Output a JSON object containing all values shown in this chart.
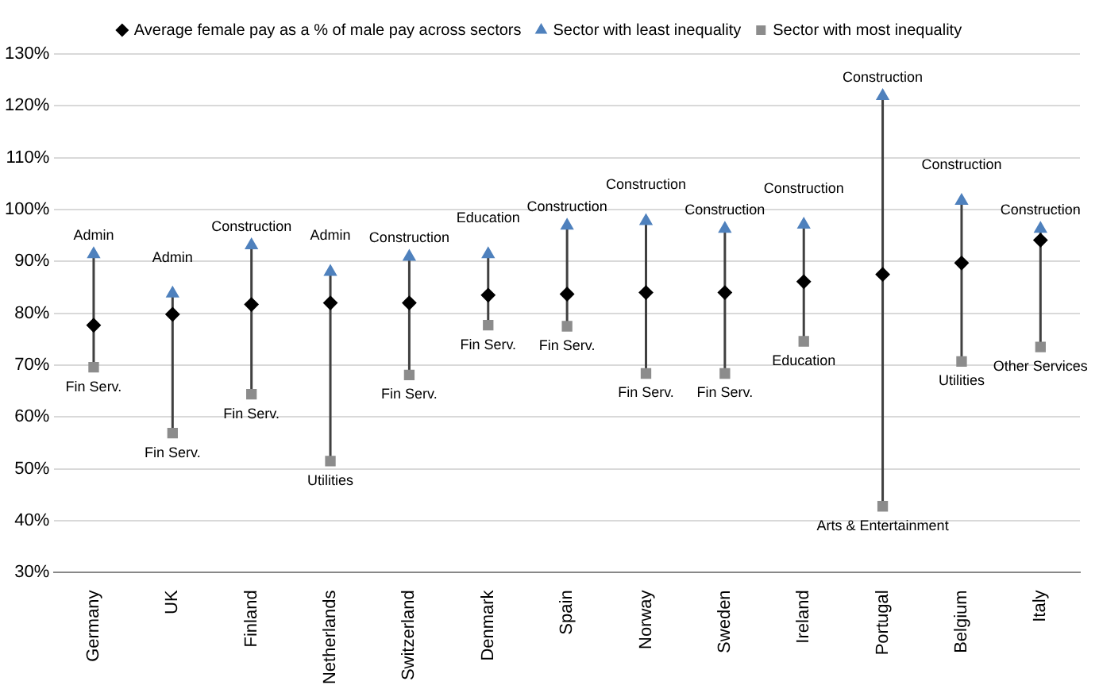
{
  "chart_data": {
    "type": "scatter",
    "categories": [
      "Germany",
      "UK",
      "Finland",
      "Netherlands",
      "Switzerland",
      "Denmark",
      "Spain",
      "Norway",
      "Sweden",
      "Ireland",
      "Portugal",
      "Belgium",
      "Italy"
    ],
    "series": [
      {
        "name": "Average female pay as a % of male pay across sectors",
        "color": "#000000",
        "marker": "diamond",
        "values": [
          77.7,
          79.8,
          81.7,
          82,
          82,
          83.5,
          83.7,
          84,
          84,
          86.1,
          87.5,
          89.7,
          94.1
        ]
      },
      {
        "name": "Sector with least inequality",
        "color": "#4f81bd",
        "marker": "triangle",
        "values": [
          91.4,
          83.8,
          93.1,
          88,
          90.9,
          91.4,
          96.9,
          97.8,
          96.3,
          97.1,
          121.9,
          101.7,
          96.3
        ]
      },
      {
        "name": "Sector with most inequality",
        "color": "#8c8c8c",
        "marker": "square",
        "values": [
          69.6,
          56.9,
          64.4,
          51.5,
          68.1,
          77.7,
          77.5,
          68.4,
          68.4,
          74.6,
          42.8,
          70.7,
          73.5
        ]
      }
    ],
    "ylim": [
      30,
      130
    ],
    "yticks": [
      {
        "value": 30,
        "label": "30%"
      },
      {
        "value": 40,
        "label": "40%"
      },
      {
        "value": 50,
        "label": "50%"
      },
      {
        "value": 60,
        "label": "60%"
      },
      {
        "value": 70,
        "label": "70%"
      },
      {
        "value": 80,
        "label": "80%"
      },
      {
        "value": 90,
        "label": "90%"
      },
      {
        "value": 100,
        "label": "100%"
      },
      {
        "value": 110,
        "label": "110%"
      },
      {
        "value": 120,
        "label": "120%"
      },
      {
        "value": 130,
        "label": "130%"
      }
    ],
    "grid": "y",
    "legend": "top",
    "annotations": [
      {
        "text": "Admin",
        "x": "Germany",
        "y": 91.4
      },
      {
        "text": "Fin Serv.",
        "x": "Germany",
        "y": 69.6
      },
      {
        "text": "Admin",
        "x": "UK",
        "y": 83.8
      },
      {
        "text": "Fin Serv.",
        "x": "UK",
        "y": 56.9
      },
      {
        "text": "Construction",
        "x": "Finland",
        "y": 93.1
      },
      {
        "text": "Fin Serv.",
        "x": "Finland",
        "y": 64.4
      },
      {
        "text": "Admin",
        "x": "Netherlands",
        "y": 88
      },
      {
        "text": "Utilities",
        "x": "Netherlands",
        "y": 51.5
      },
      {
        "text": "Construction",
        "x": "Switzerland",
        "y": 90.9
      },
      {
        "text": "Fin Serv.",
        "x": "Switzerland",
        "y": 68.1
      },
      {
        "text": "Education",
        "x": "Denmark",
        "y": 91.4
      },
      {
        "text": "Fin Serv.",
        "x": "Denmark",
        "y": 77.7
      },
      {
        "text": "Construction",
        "x": "Spain",
        "y": 96.9
      },
      {
        "text": "Fin Serv.",
        "x": "Spain",
        "y": 77.5
      },
      {
        "text": "Construction",
        "x": "Norway",
        "y": 97.8
      },
      {
        "text": "Fin Serv.",
        "x": "Norway",
        "y": 68.4
      },
      {
        "text": "Construction",
        "x": "Sweden",
        "y": 96.3
      },
      {
        "text": "Fin Serv.",
        "x": "Sweden",
        "y": 68.4
      },
      {
        "text": "Construction",
        "x": "Ireland",
        "y": 97.1
      },
      {
        "text": "Education",
        "x": "Ireland",
        "y": 74.6
      },
      {
        "text": "Construction",
        "x": "Portugal",
        "y": 121.9
      },
      {
        "text": "Arts & Entertainment",
        "x": "Portugal",
        "y": 42.8
      },
      {
        "text": "Construction",
        "x": "Belgium",
        "y": 101.7
      },
      {
        "text": "Utilities",
        "x": "Belgium",
        "y": 70.7
      },
      {
        "text": "Construction",
        "x": "Italy",
        "y": 96.3
      },
      {
        "text": "Other Services",
        "x": "Italy",
        "y": 73.5
      }
    ]
  }
}
